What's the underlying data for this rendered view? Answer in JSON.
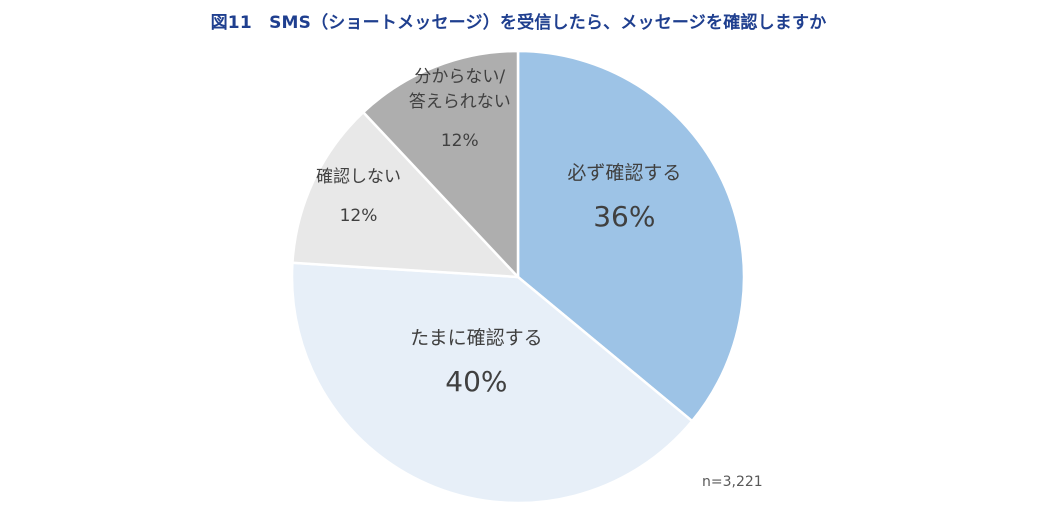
{
  "chart_data": {
    "type": "pie",
    "title": "図11　SMS（ショートメッセージ）を受信したら、メッセージを確認しますか",
    "slices": [
      {
        "label": "必ず確認する",
        "label_lines": [
          "必ず確認する"
        ],
        "value": 36,
        "value_label": "36%",
        "color": "#9dc3e6",
        "text_color": "#404040"
      },
      {
        "label": "たまに確認する",
        "label_lines": [
          "たまに確認する"
        ],
        "value": 40,
        "value_label": "40%",
        "color": "#e7eff8",
        "text_color": "#404040"
      },
      {
        "label": "確認しない",
        "label_lines": [
          "確認しない"
        ],
        "value": 12,
        "value_label": "12%",
        "color": "#e8e8e8",
        "text_color": "#404040"
      },
      {
        "label": "分からない/答えられない",
        "label_lines": [
          "分からない/",
          "答えられない"
        ],
        "value": 12,
        "value_label": "12%",
        "color": "#aeaeae",
        "text_color": "#404040"
      }
    ],
    "note": "n=3,221",
    "start": "12 o'clock",
    "direction": "clockwise"
  }
}
